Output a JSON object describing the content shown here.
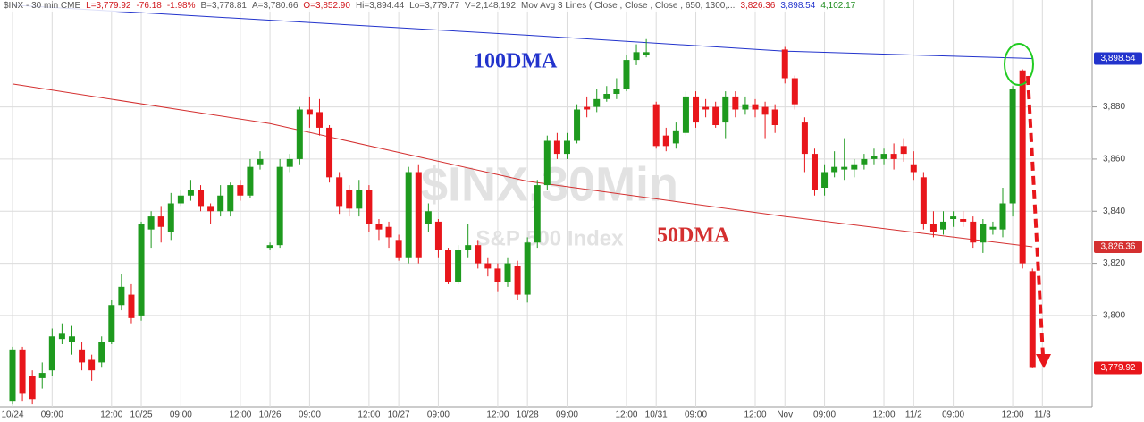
{
  "header": [
    {
      "text": "$INX - 30 min CME",
      "color": "#555555"
    },
    {
      "text": "L=3,779.92",
      "color": "#d0161b"
    },
    {
      "text": "-76.18",
      "color": "#d0161b"
    },
    {
      "text": "-1.98%",
      "color": "#d0161b"
    },
    {
      "text": "B=3,778.81",
      "color": "#555555"
    },
    {
      "text": "A=3,780.66",
      "color": "#555555"
    },
    {
      "text": "O=3,852.90",
      "color": "#d0161b"
    },
    {
      "text": "Hi=3,894.44",
      "color": "#555555"
    },
    {
      "text": "Lo=3,779.77",
      "color": "#555555"
    },
    {
      "text": "V=2,148,192",
      "color": "#555555"
    },
    {
      "text": "Mov Avg 3 Lines ( Close , Close , Close , 650, 1300,...",
      "color": "#555555"
    },
    {
      "text": "3,826.36",
      "color": "#d0161b"
    },
    {
      "text": "3,898.54",
      "color": "#2233cc"
    },
    {
      "text": "4,102.17",
      "color": "#1e8c1e"
    }
  ],
  "chart_data": {
    "type": "candlestick",
    "watermark": {
      "title": "$INX,30Min",
      "subtitle": "S&P 500 Index"
    },
    "categories": [
      "10/24",
      null,
      null,
      null,
      "09:00",
      null,
      null,
      null,
      null,
      null,
      "12:00",
      null,
      null,
      "10/25",
      null,
      null,
      null,
      "09:00",
      null,
      null,
      null,
      null,
      null,
      "12:00",
      null,
      null,
      "10/26",
      null,
      null,
      null,
      "09:00",
      null,
      null,
      null,
      null,
      null,
      "12:00",
      null,
      null,
      "10/27",
      null,
      null,
      null,
      "09:00",
      null,
      null,
      null,
      null,
      null,
      "12:00",
      null,
      null,
      "10/28",
      null,
      null,
      null,
      "09:00",
      null,
      null,
      null,
      null,
      null,
      "12:00",
      null,
      null,
      "10/31",
      null,
      null,
      null,
      "09:00",
      null,
      null,
      null,
      null,
      null,
      "12:00",
      null,
      null,
      "Nov",
      null,
      null,
      null,
      "09:00",
      null,
      null,
      null,
      null,
      null,
      "12:00",
      null,
      null,
      "11/2",
      null,
      null,
      null,
      "09:00",
      null,
      null,
      null,
      null,
      null,
      "12:00",
      null,
      null,
      "11/3"
    ],
    "open": [
      3767,
      3787,
      3777,
      3776,
      3779,
      3791,
      3790,
      3787,
      3783,
      3782,
      3790,
      3804,
      3808,
      3800,
      3833,
      3838,
      3832,
      3843,
      3846,
      3848,
      3842,
      3840,
      3840,
      3850,
      3846,
      3858,
      3826,
      3827,
      3857,
      3860,
      3879,
      3878,
      3872,
      3853,
      3848,
      3841,
      3848,
      3835,
      3834,
      3829,
      3822,
      3855,
      3835,
      3836,
      3825,
      3813,
      3825,
      3827,
      3820,
      3818,
      3813,
      3819,
      3808,
      3828,
      3850,
      3867,
      3862,
      3867,
      3880,
      3880,
      3883,
      3885,
      3887,
      3898,
      3900,
      3881,
      3869,
      3866,
      3870,
      3884,
      3880,
      3880,
      3874,
      3884,
      3879,
      3881,
      3880,
      3879,
      3902,
      3891,
      3874,
      3862,
      3849,
      3855,
      3856,
      3856,
      3858,
      3860,
      3860,
      3862,
      3865,
      3858,
      3853,
      3835,
      3833,
      3837,
      3837,
      3836,
      3828,
      3833,
      3833,
      3843,
      3894,
      3817,
      null
    ],
    "high": [
      3788,
      3788,
      3779,
      3782,
      3795,
      3797,
      3796,
      3790,
      3785,
      3792,
      3806,
      3816,
      3812,
      3836,
      3840,
      3842,
      3847,
      3848,
      3852,
      3850,
      3843,
      3850,
      3851,
      3852,
      3860,
      3863,
      3828,
      3860,
      3862,
      3880,
      3884,
      3883,
      3873,
      3855,
      3850,
      3852,
      3850,
      3837,
      3836,
      3831,
      3857,
      3858,
      3843,
      3837,
      3826,
      3827,
      3835,
      3829,
      3822,
      3820,
      3822,
      3821,
      3830,
      3852,
      3869,
      3870,
      3870,
      3881,
      3884,
      3887,
      3888,
      3891,
      3900,
      3904,
      3906,
      3882,
      3872,
      3874,
      3886,
      3886,
      3883,
      3882,
      3886,
      3886,
      3884,
      3883,
      3882,
      3881,
      3903,
      3892,
      3876,
      3864,
      3858,
      3863,
      3868,
      3860,
      3862,
      3864,
      3864,
      3866,
      3868,
      3863,
      3855,
      3840,
      3840,
      3840,
      3840,
      3838,
      3837,
      3836,
      3849,
      3888,
      3894.44,
      3818,
      null
    ],
    "low": [
      3766,
      3767,
      3766,
      3772,
      3777,
      3789,
      3785,
      3779,
      3775,
      3780,
      3789,
      3802,
      3797,
      3798,
      3826,
      3828,
      3829,
      3842,
      3844,
      3840,
      3835,
      3838,
      3838,
      3844,
      3845,
      3856,
      3825,
      3826,
      3855,
      3858,
      3872,
      3869,
      3851,
      3839,
      3838,
      3838,
      3832,
      3829,
      3826,
      3821,
      3820,
      3820,
      3832,
      3822,
      3812,
      3812,
      3822,
      3818,
      3815,
      3809,
      3811,
      3806,
      3805,
      3826,
      3848,
      3860,
      3860,
      3866,
      3876,
      3878,
      3882,
      3883,
      3886,
      3896,
      3899,
      3864,
      3863,
      3864,
      3869,
      3872,
      3876,
      3872,
      3868,
      3876,
      3877,
      3876,
      3868,
      3870,
      3889,
      3879,
      3855,
      3846,
      3846,
      3853,
      3852,
      3853,
      3856,
      3858,
      3858,
      3856,
      3859,
      3852,
      3833,
      3830,
      3831,
      3834,
      3834,
      3826,
      3824,
      3831,
      3830,
      3838,
      3818,
      3779.77,
      null
    ],
    "close": [
      3787,
      3770,
      3768,
      3778,
      3792,
      3793,
      3792,
      3782,
      3779,
      3790,
      3804,
      3811,
      3799,
      3835,
      3838,
      3834,
      3843,
      3846,
      3848,
      3842,
      3840,
      3846,
      3850,
      3846,
      3857,
      3860,
      3827,
      3857,
      3860,
      3879,
      3877,
      3872,
      3853,
      3842,
      3841,
      3848,
      3835,
      3833,
      3830,
      3822,
      3855,
      3822,
      3840,
      3825,
      3813,
      3825,
      3827,
      3820,
      3818,
      3813,
      3820,
      3808,
      3828,
      3850,
      3867,
      3862,
      3867,
      3879,
      3879,
      3883,
      3885,
      3887,
      3898,
      3901,
      3901,
      3865,
      3865,
      3871,
      3884,
      3874,
      3879,
      3873,
      3884,
      3879,
      3881,
      3879,
      3877,
      3873,
      3891,
      3881,
      3862,
      3848,
      3855,
      3857,
      3857,
      3858,
      3860,
      3861,
      3862,
      3860,
      3862,
      3855,
      3835,
      3832,
      3836,
      3838,
      3836,
      3828,
      3835,
      3834,
      3843,
      3887,
      3820,
      3779.92,
      null
    ],
    "last_label": "3,779.92",
    "up_color": "#1e9a1e",
    "down_color": "#e8161b",
    "moving_averages": [
      {
        "name": "100DMA",
        "color": "#2233cc",
        "x": [
          0,
          52,
          78,
          103
        ],
        "values": [
          3919,
          3907.5,
          3901.4,
          3898.54
        ],
        "last_label": "3,898.54"
      },
      {
        "name": "50DMA",
        "color": "#d43030",
        "x": [
          0,
          26,
          52,
          78,
          103
        ],
        "values": [
          3888.8,
          3873.6,
          3851.5,
          3838,
          3826.36
        ],
        "last_label": "3,826.36"
      }
    ],
    "ylim": [
      3765,
      3921
    ],
    "yticks": [
      {
        "value": 3800,
        "label": "3,800"
      },
      {
        "value": 3820,
        "label": "3,820"
      },
      {
        "value": 3840,
        "label": "3,840"
      },
      {
        "value": 3860,
        "label": "3,860"
      },
      {
        "value": 3880,
        "label": "3,880"
      }
    ],
    "grid": true
  }
}
